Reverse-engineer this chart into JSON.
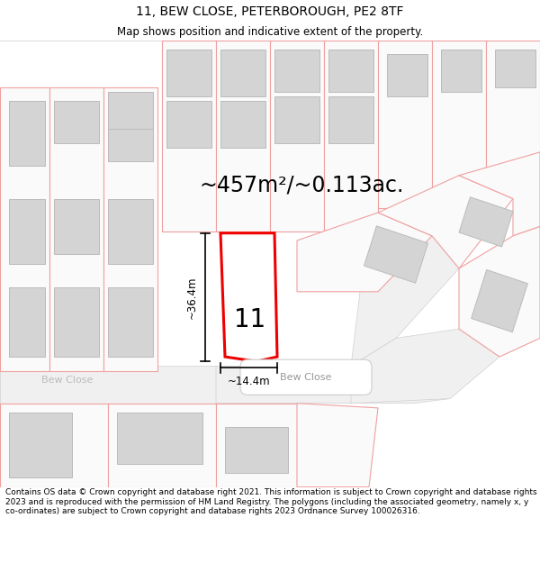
{
  "title": "11, BEW CLOSE, PETERBOROUGH, PE2 8TF",
  "subtitle": "Map shows position and indicative extent of the property.",
  "footer": "Contains OS data © Crown copyright and database right 2021. This information is subject to Crown copyright and database rights 2023 and is reproduced with the permission of HM Land Registry. The polygons (including the associated geometry, namely x, y co-ordinates) are subject to Crown copyright and database rights 2023 Ordnance Survey 100026316.",
  "area_label": "~457m²/~0.113ac.",
  "height_label": "~36.4m",
  "width_label": "~14.4m",
  "plot_number": "11",
  "road_name_left": "Bew Close",
  "road_name_right": "Bew Close",
  "bg_color": "#ffffff",
  "map_bg": "#f5f5f5",
  "plot_fill": "#ffffff",
  "plot_outline": "#ee0000",
  "building_fill": "#d4d4d4",
  "building_outline": "#bbbbbb",
  "parcel_line_color": "#f0a0a0",
  "road_fill": "#f0f0f0",
  "road_label_fill": "#ffffff",
  "road_label_outline": "#cccccc",
  "road_text_color": "#888888",
  "dim_color": "#000000",
  "title_fontsize": 10,
  "subtitle_fontsize": 8.5,
  "footer_fontsize": 6.5,
  "area_fontsize": 17,
  "plot_num_fontsize": 20,
  "dim_fontsize": 8.5
}
